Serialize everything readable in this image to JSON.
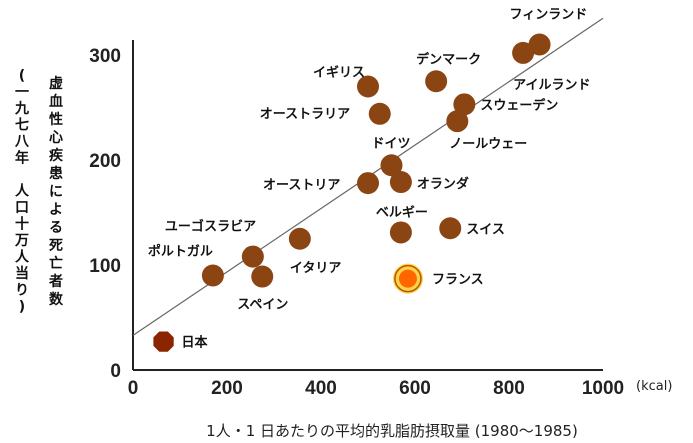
{
  "chart_data": {
    "type": "scatter",
    "xlabel": "1人・1 日あたりの平均的乳脂肪摂取量 (1980〜1985)",
    "x_unit": "(kcal)",
    "ylabel_main": "虚血性心疾患による死亡者数",
    "ylabel_sub": "(一九七八年　人口十万人当り)",
    "xlim": [
      0,
      1000
    ],
    "ylim": [
      0,
      320
    ],
    "x_ticks": [
      0,
      200,
      400,
      600,
      800,
      1000
    ],
    "y_ticks": [
      0,
      100,
      200,
      300
    ],
    "trendline": {
      "x": [
        0,
        1000
      ],
      "y": [
        33,
        335
      ]
    },
    "colors": {
      "point": "#8b4513",
      "highlight": "#ff6600",
      "japan": "#8b2500",
      "line": "#666666"
    },
    "points": [
      {
        "name": "フィンランド",
        "x": 865,
        "y": 310
      },
      {
        "name": "",
        "x": 830,
        "y": 302
      },
      {
        "name": "アイルランド",
        "x": 830,
        "y": 302
      },
      {
        "name": "イギリス",
        "x": 500,
        "y": 270
      },
      {
        "name": "デンマーク",
        "x": 645,
        "y": 275
      },
      {
        "name": "オーストラリア",
        "x": 525,
        "y": 244
      },
      {
        "name": "スウェーデン",
        "x": 705,
        "y": 253
      },
      {
        "name": "ノールウェー",
        "x": 690,
        "y": 237
      },
      {
        "name": "ドイツ",
        "x": 550,
        "y": 195
      },
      {
        "name": "オーストリア",
        "x": 500,
        "y": 178
      },
      {
        "name": "オランダ",
        "x": 570,
        "y": 179
      },
      {
        "name": "ベルギー",
        "x": 570,
        "y": 131
      },
      {
        "name": "スイス",
        "x": 675,
        "y": 135
      },
      {
        "name": "ユーゴスラビア",
        "x": 255,
        "y": 108
      },
      {
        "name": "イタリア",
        "x": 355,
        "y": 125
      },
      {
        "name": "ポルトガル",
        "x": 170,
        "y": 90
      },
      {
        "name": "スペイン",
        "x": 275,
        "y": 89
      },
      {
        "name": "フランス",
        "x": 585,
        "y": 87,
        "highlight": true
      },
      {
        "name": "日本",
        "x": 65,
        "y": 27,
        "japan": true
      }
    ]
  }
}
